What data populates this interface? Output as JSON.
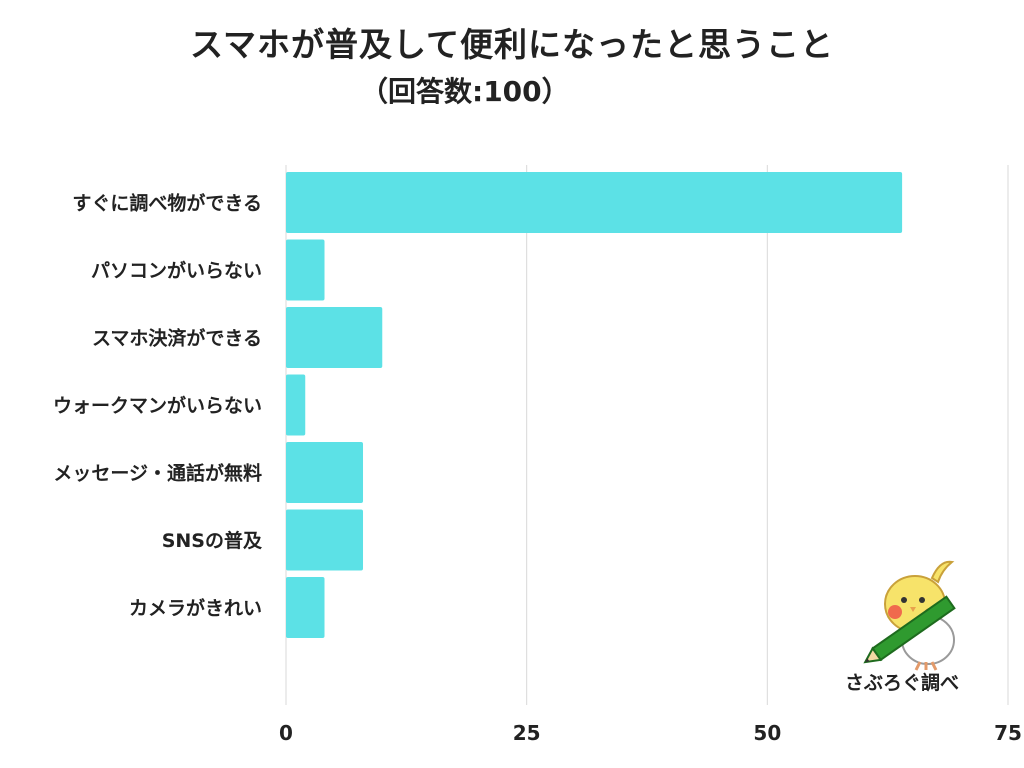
{
  "chart_data": {
    "type": "bar",
    "orientation": "horizontal",
    "title": "スマホが普及して便利になったと思うこと",
    "subtitle": "（回答数:100）",
    "categories": [
      "すぐに調べ物ができる",
      "パソコンがいらない",
      "スマホ決済ができる",
      "ウォークマンがいらない",
      "メッセージ・通話が無料",
      "SNSの普及",
      "カメラがきれい"
    ],
    "values": [
      64,
      4,
      10,
      2,
      8,
      8,
      4
    ],
    "xlim": [
      0,
      75
    ],
    "xticks": [
      0,
      25,
      50,
      75
    ],
    "grid": true,
    "bar_color": "#5ce1e6",
    "grid_color": "#d9d9d9"
  },
  "logo": {
    "text": "さぶろぐ調べ"
  }
}
